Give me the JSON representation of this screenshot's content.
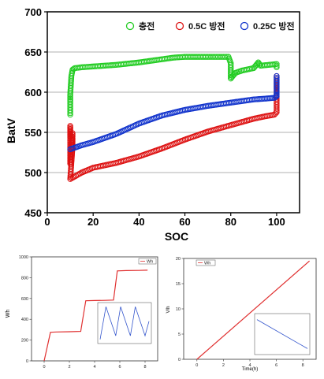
{
  "colors": {
    "charge": "#22cc22",
    "discharge_05c": "#dd1111",
    "discharge_025c": "#1133cc",
    "grid": "#b0b0b0",
    "axis": "#000000",
    "small_line_red": "#e03030",
    "small_line_blue": "#3355cc"
  },
  "chart_data": [
    {
      "id": "main",
      "type": "scatter",
      "title": "",
      "xlabel": "SOC",
      "ylabel": "BatV",
      "xlim": [
        0,
        110
      ],
      "ylim": [
        450,
        700
      ],
      "xticks": [
        0,
        20,
        40,
        60,
        80,
        100
      ],
      "yticks": [
        450,
        500,
        550,
        600,
        650,
        700
      ],
      "grid": "horizontal",
      "legend_position": "top-right",
      "series": [
        {
          "name": "충전",
          "color_key": "charge",
          "points": [
            [
              10,
              572
            ],
            [
              10,
              590
            ],
            [
              10,
              597
            ],
            [
              10.5,
              620
            ],
            [
              11,
              628
            ],
            [
              12,
              630
            ],
            [
              15,
              631
            ],
            [
              20,
              632
            ],
            [
              30,
              634
            ],
            [
              40,
              637
            ],
            [
              50,
              641
            ],
            [
              55,
              643
            ],
            [
              60,
              644
            ],
            [
              70,
              644
            ],
            [
              79,
              644
            ],
            [
              80,
              636
            ],
            [
              80,
              617
            ],
            [
              82,
              624
            ],
            [
              85,
              627
            ],
            [
              90,
              630
            ],
            [
              92,
              637
            ],
            [
              93,
              633
            ],
            [
              100,
              635
            ],
            [
              100,
              631
            ]
          ]
        },
        {
          "name": "0.5C 방전",
          "color_key": "discharge_05c",
          "points": [
            [
              10,
              545
            ],
            [
              10,
              558
            ],
            [
              10,
              525
            ],
            [
              10,
              511
            ],
            [
              11,
              549
            ],
            [
              11,
              532
            ],
            [
              10,
              492
            ],
            [
              15,
              500
            ],
            [
              20,
              506
            ],
            [
              30,
              512
            ],
            [
              40,
              520
            ],
            [
              50,
              530
            ],
            [
              60,
              541
            ],
            [
              70,
              551
            ],
            [
              80,
              559
            ],
            [
              90,
              567
            ],
            [
              95,
              570
            ],
            [
              99,
              572
            ],
            [
              100,
              575
            ],
            [
              100,
              620
            ]
          ]
        },
        {
          "name": "0.25C 방전",
          "color_key": "discharge_025c",
          "points": [
            [
              10,
              529
            ],
            [
              12,
              531
            ],
            [
              15,
              534
            ],
            [
              20,
              538
            ],
            [
              30,
              548
            ],
            [
              40,
              561
            ],
            [
              50,
              571
            ],
            [
              60,
              578
            ],
            [
              70,
              583
            ],
            [
              80,
              587
            ],
            [
              90,
              591
            ],
            [
              95,
              592
            ],
            [
              99,
              593
            ],
            [
              100,
              595
            ],
            [
              100,
              598
            ],
            [
              100,
              620
            ]
          ]
        }
      ]
    },
    {
      "id": "wh",
      "type": "line",
      "title": "",
      "xlabel": "",
      "ylabel": "Wh",
      "xlim": [
        -1,
        9
      ],
      "ylim": [
        0,
        1000
      ],
      "xticks": [
        0,
        2,
        4,
        6,
        8
      ],
      "yticks": [
        0,
        200,
        400,
        600,
        800,
        1000
      ],
      "legend": [
        "Wh"
      ],
      "series": [
        {
          "name": "Wh",
          "color_key": "small_line_red",
          "points": [
            [
              0,
              0
            ],
            [
              0.5,
              275
            ],
            [
              1,
              278
            ],
            [
              2,
              280
            ],
            [
              2.9,
              283
            ],
            [
              3.3,
              578
            ],
            [
              4,
              580
            ],
            [
              4.8,
              582
            ],
            [
              5.5,
              585
            ],
            [
              5.8,
              865
            ],
            [
              6.5,
              868
            ],
            [
              7.5,
              870
            ],
            [
              8.2,
              872
            ]
          ]
        }
      ],
      "inset": {
        "type": "line",
        "xlabel": "",
        "ylabel": "",
        "color_key": "small_line_blue",
        "points": [
          [
            0,
            0.05
          ],
          [
            0.12,
            0.95
          ],
          [
            0.32,
            0.15
          ],
          [
            0.42,
            0.95
          ],
          [
            0.62,
            0.15
          ],
          [
            0.72,
            0.95
          ],
          [
            0.92,
            0.15
          ],
          [
            1,
            0.55
          ]
        ]
      }
    },
    {
      "id": "vh",
      "type": "line",
      "title": "",
      "xlabel": "Time(h)",
      "ylabel": "V/h",
      "xlim": [
        -1,
        9
      ],
      "ylim": [
        0,
        20
      ],
      "xticks": [
        0,
        2,
        4,
        6,
        8
      ],
      "yticks": [
        0,
        5,
        10,
        15,
        20
      ],
      "legend": [
        "Wh"
      ],
      "series": [
        {
          "name": "Wh",
          "color_key": "small_line_red",
          "points": [
            [
              0,
              0
            ],
            [
              8.5,
              19.5
            ]
          ]
        }
      ],
      "inset": {
        "type": "line",
        "xlabel": "",
        "ylabel": "",
        "color_key": "small_line_blue",
        "points": [
          [
            0,
            0.9
          ],
          [
            1,
            0.1
          ]
        ]
      }
    }
  ]
}
